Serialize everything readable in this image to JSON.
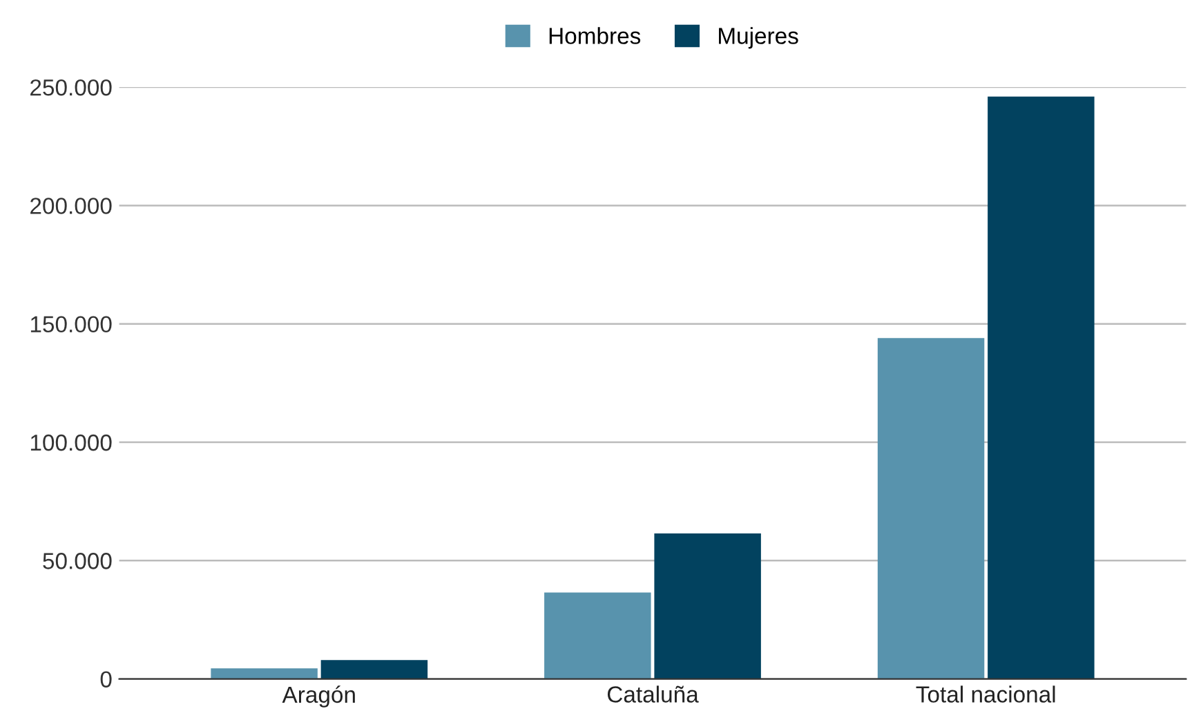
{
  "chart_data": {
    "type": "bar",
    "categories": [
      "Aragón",
      "Cataluña",
      "Total nacional"
    ],
    "series": [
      {
        "name": "Hombres",
        "color": "#5893ad",
        "values": [
          4500,
          36500,
          144000
        ]
      },
      {
        "name": "Mujeres",
        "color": "#02425f",
        "values": [
          8000,
          61500,
          246000
        ]
      }
    ],
    "ylim": [
      0,
      250000
    ],
    "yticks": [
      {
        "value": 0,
        "label": "0"
      },
      {
        "value": 50000,
        "label": "50.000"
      },
      {
        "value": 100000,
        "label": "100.000"
      },
      {
        "value": 150000,
        "label": "150.000"
      },
      {
        "value": 200000,
        "label": "200.000"
      },
      {
        "value": 250000,
        "label": "250.000"
      }
    ],
    "grid": "y",
    "legend": "top"
  }
}
